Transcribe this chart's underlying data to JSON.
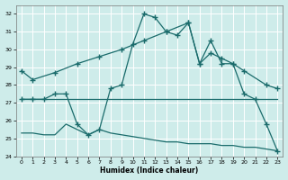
{
  "xlabel": "Humidex (Indice chaleur)",
  "bg_color": "#ceecea",
  "line_color": "#1a6b6b",
  "grid_color": "#ffffff",
  "xlim": [
    -0.5,
    23.5
  ],
  "ylim": [
    24,
    32.5
  ],
  "yticks": [
    24,
    25,
    26,
    27,
    28,
    29,
    30,
    31,
    32
  ],
  "xticks": [
    0,
    1,
    2,
    3,
    4,
    5,
    6,
    7,
    8,
    9,
    10,
    11,
    12,
    13,
    14,
    15,
    16,
    17,
    18,
    19,
    20,
    21,
    22,
    23
  ],
  "line1_x": [
    0,
    1,
    3,
    5,
    7,
    9,
    11,
    13,
    15,
    16,
    17,
    18,
    19,
    20,
    22,
    23
  ],
  "line1_y": [
    28.8,
    28.3,
    28.7,
    29.2,
    29.6,
    30.0,
    30.5,
    31.0,
    31.5,
    29.2,
    29.8,
    29.5,
    29.2,
    28.8,
    28.0,
    27.8
  ],
  "line2_x": [
    0,
    1,
    2,
    3,
    4,
    5,
    6,
    7,
    8,
    9,
    10,
    11,
    12,
    13,
    14,
    15,
    16,
    17,
    18,
    19,
    20,
    21,
    22,
    23
  ],
  "line2_y": [
    27.2,
    27.2,
    27.2,
    27.5,
    27.5,
    25.8,
    25.2,
    25.5,
    27.8,
    28.0,
    30.3,
    32.0,
    31.8,
    31.0,
    30.8,
    31.5,
    29.2,
    30.5,
    29.2,
    29.2,
    27.5,
    27.2,
    25.8,
    24.3
  ],
  "line3_x": [
    0,
    23
  ],
  "line3_y": [
    27.2,
    27.2
  ],
  "line4_x": [
    0,
    1,
    2,
    3,
    4,
    5,
    6,
    7,
    8,
    9,
    10,
    11,
    12,
    13,
    14,
    15,
    16,
    17,
    18,
    19,
    20,
    21,
    22,
    23
  ],
  "line4_y": [
    25.3,
    25.3,
    25.2,
    25.2,
    25.8,
    25.5,
    25.2,
    25.5,
    25.3,
    25.2,
    25.1,
    25.0,
    24.9,
    24.8,
    24.8,
    24.7,
    24.7,
    24.7,
    24.6,
    24.6,
    24.5,
    24.5,
    24.4,
    24.3
  ]
}
